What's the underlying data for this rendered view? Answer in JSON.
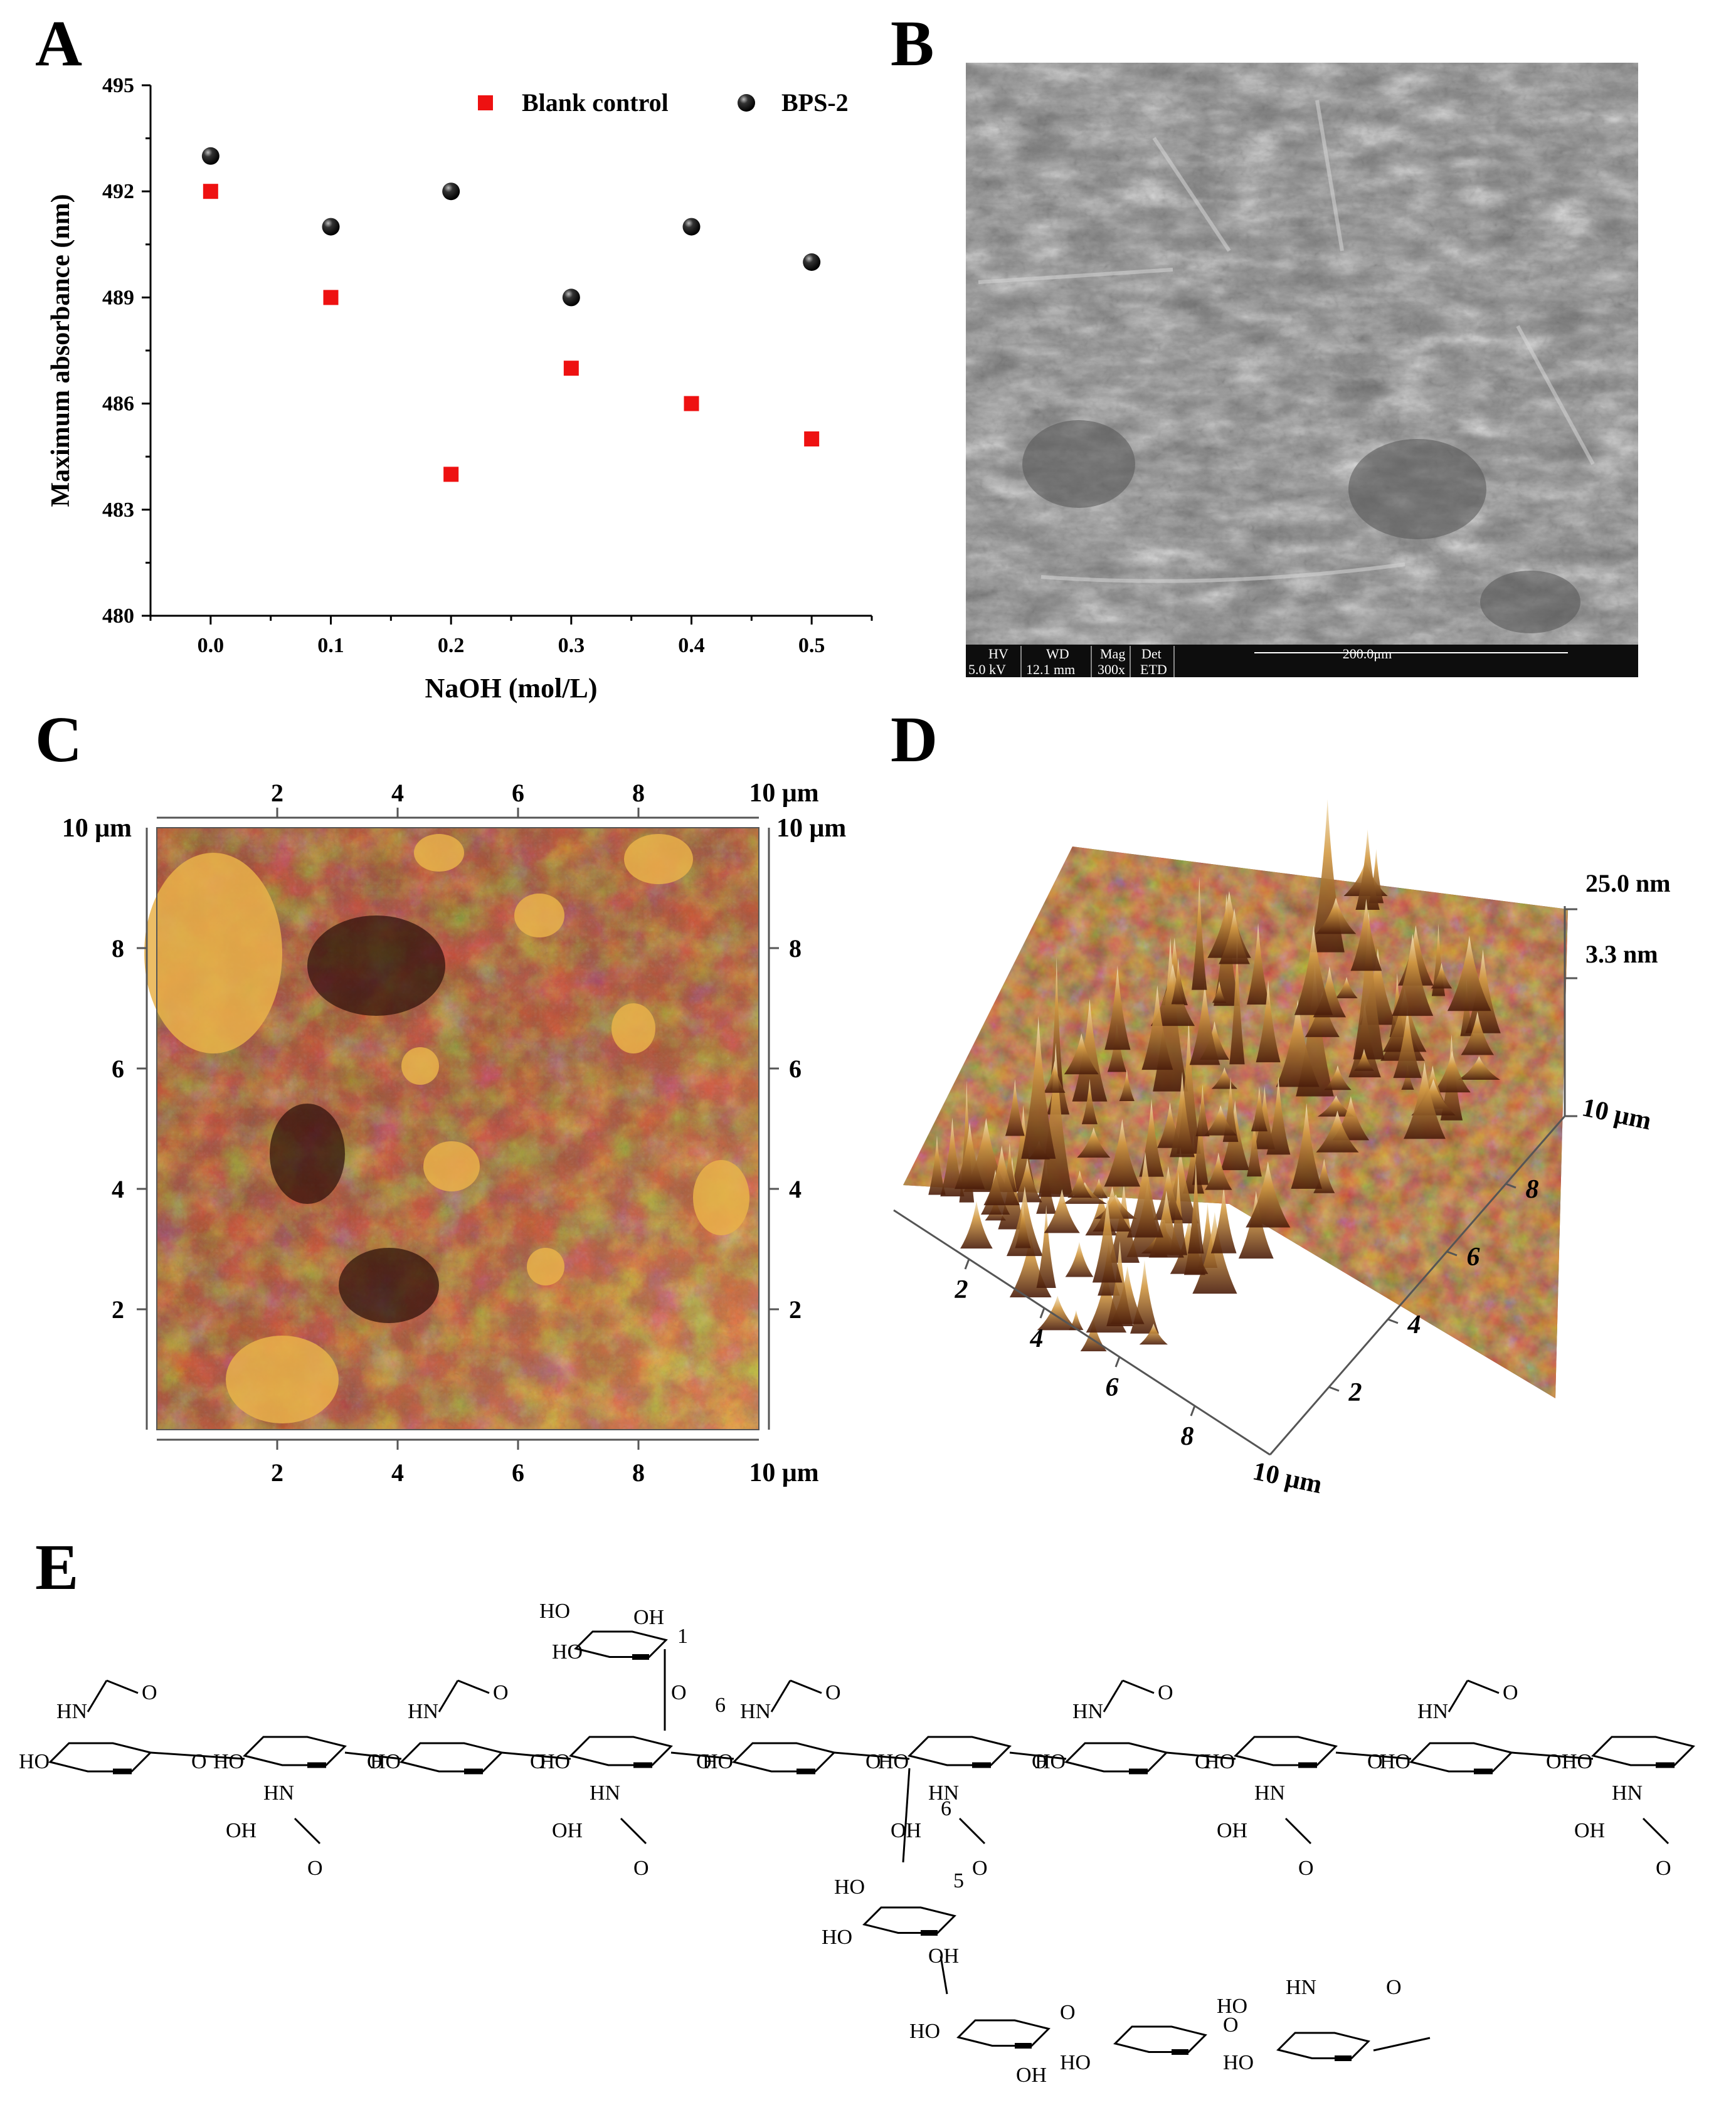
{
  "panels": {
    "a": "A",
    "b": "B",
    "c": "C",
    "d": "D",
    "e": "E"
  },
  "chart_data": [
    {
      "type": "scatter",
      "xlabel": "NaOH (mol/L)",
      "ylabel": "Maximum absorbance (nm)",
      "x": [
        0.0,
        0.1,
        0.2,
        0.3,
        0.4,
        0.5
      ],
      "x_tick_labels": [
        "0.0",
        "0.1",
        "0.2",
        "0.3",
        "0.4",
        "0.5"
      ],
      "y_ticks": [
        480,
        483,
        486,
        489,
        492,
        495
      ],
      "ylim": [
        480,
        495
      ],
      "legend_position": "top-right",
      "series": [
        {
          "name": "Blank control",
          "marker": "square",
          "color": "#ee1111",
          "values": [
            492,
            489,
            484,
            487,
            486,
            485
          ]
        },
        {
          "name": "BPS-2",
          "marker": "sphere",
          "color": "#111111",
          "values": [
            493,
            491,
            492,
            489,
            491,
            490
          ]
        }
      ]
    }
  ],
  "sem": {
    "hv_label": "HV",
    "hv_value": "5.0 kV",
    "wd_label": "WD",
    "wd_value": "12.1 mm",
    "mag_label": "Mag",
    "mag_value": "300x",
    "det_label": "Det",
    "det_value": "ETD",
    "scale_bar": "200.0μm"
  },
  "afm2d": {
    "axis_ticks": [
      "2",
      "4",
      "6",
      "8"
    ],
    "axis_end": "10 μm"
  },
  "afm3d": {
    "z_top": "25.0 nm",
    "z_mid": "3.3 nm",
    "x_ticks": [
      "2",
      "4",
      "6",
      "8"
    ],
    "y_ticks": [
      "2",
      "4",
      "6",
      "8"
    ],
    "x_end": "10 μm",
    "y_end": "10 μm"
  },
  "structure": {
    "labels": {
      "ho": "HO",
      "oh": "OH",
      "hn": "HN",
      "o": "O",
      "n1": "1",
      "n5": "5",
      "n6": "6"
    }
  }
}
